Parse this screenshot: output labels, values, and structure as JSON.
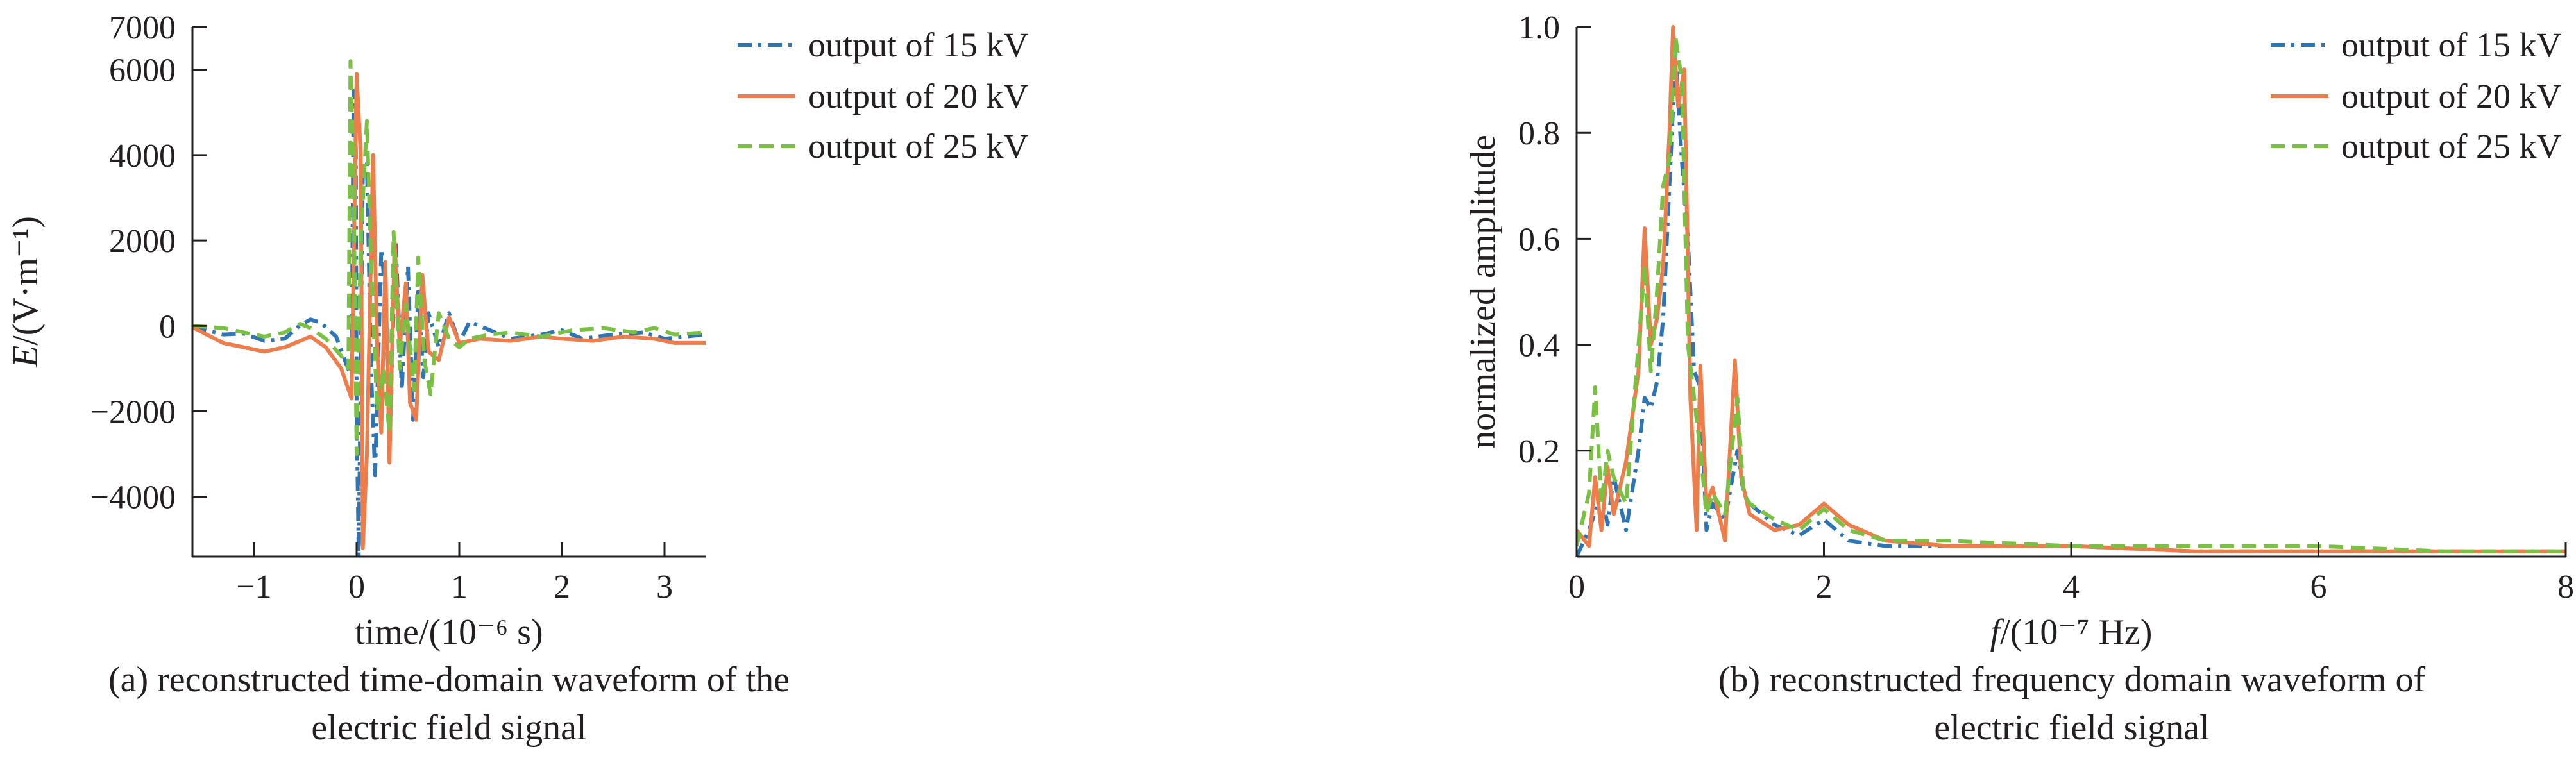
{
  "chart_data": [
    {
      "type": "line",
      "caption": [
        "(a) reconstructed time-domain waveform of the",
        "electric field signal"
      ],
      "xlabel": "time/(10⁻⁶ s)",
      "ylabel": "E/(V·m⁻¹)",
      "xlim": [
        -1.6,
        3.4
      ],
      "ylim": [
        -5400,
        7000
      ],
      "xticks": [
        "−1",
        "0",
        "1",
        "2",
        "3"
      ],
      "xtick_values": [
        -1,
        0,
        1,
        2,
        3
      ],
      "yticks": [
        "7000",
        "6000",
        "4000",
        "2000",
        "0",
        "−2000",
        "−4000"
      ],
      "ytick_values": [
        7000,
        6000,
        4000,
        2000,
        0,
        -2000,
        -4000
      ],
      "legend_position": "top-right",
      "series": [
        {
          "name": "output of 15 kV",
          "color": "#2e75b6",
          "dash": "dashdot",
          "points": [
            [
              -1.6,
              -20
            ],
            [
              -1.3,
              -200
            ],
            [
              -1.1,
              -180
            ],
            [
              -0.9,
              -350
            ],
            [
              -0.7,
              -300
            ],
            [
              -0.55,
              20
            ],
            [
              -0.45,
              150
            ],
            [
              -0.35,
              80
            ],
            [
              -0.2,
              -250
            ],
            [
              -0.1,
              -900
            ],
            [
              -0.05,
              -1200
            ],
            [
              -0.03,
              5500
            ],
            [
              -0.01,
              5200
            ],
            [
              0.0,
              -2000
            ],
            [
              0.02,
              -5400
            ],
            [
              0.06,
              3500
            ],
            [
              0.1,
              3800
            ],
            [
              0.14,
              -1000
            ],
            [
              0.18,
              -3500
            ],
            [
              0.24,
              1800
            ],
            [
              0.28,
              800
            ],
            [
              0.32,
              -2800
            ],
            [
              0.38,
              2000
            ],
            [
              0.44,
              -1500
            ],
            [
              0.5,
              1400
            ],
            [
              0.55,
              -2200
            ],
            [
              0.6,
              800
            ],
            [
              0.65,
              -1200
            ],
            [
              0.7,
              300
            ],
            [
              0.8,
              -500
            ],
            [
              0.9,
              300
            ],
            [
              1.0,
              -400
            ],
            [
              1.1,
              100
            ],
            [
              1.3,
              -100
            ],
            [
              1.5,
              -300
            ],
            [
              1.8,
              -200
            ],
            [
              2.0,
              -100
            ],
            [
              2.2,
              -300
            ],
            [
              2.5,
              -200
            ],
            [
              2.8,
              -150
            ],
            [
              3.0,
              -300
            ],
            [
              3.2,
              -250
            ],
            [
              3.4,
              -200
            ]
          ]
        },
        {
          "name": "output of 20 kV",
          "color": "#ed7d4b",
          "dash": "solid",
          "points": [
            [
              -1.6,
              -30
            ],
            [
              -1.3,
              -400
            ],
            [
              -1.1,
              -500
            ],
            [
              -0.9,
              -600
            ],
            [
              -0.7,
              -500
            ],
            [
              -0.55,
              -350
            ],
            [
              -0.45,
              -250
            ],
            [
              -0.3,
              -500
            ],
            [
              -0.15,
              -1000
            ],
            [
              -0.05,
              -1700
            ],
            [
              0.0,
              5900
            ],
            [
              0.04,
              4000
            ],
            [
              0.06,
              -5200
            ],
            [
              0.1,
              -3000
            ],
            [
              0.16,
              4000
            ],
            [
              0.2,
              -500
            ],
            [
              0.24,
              -2500
            ],
            [
              0.28,
              1500
            ],
            [
              0.32,
              -3200
            ],
            [
              0.37,
              2000
            ],
            [
              0.42,
              -500
            ],
            [
              0.48,
              1000
            ],
            [
              0.52,
              -1800
            ],
            [
              0.58,
              -2200
            ],
            [
              0.64,
              1200
            ],
            [
              0.7,
              -600
            ],
            [
              0.8,
              -800
            ],
            [
              0.9,
              200
            ],
            [
              1.0,
              -400
            ],
            [
              1.2,
              -300
            ],
            [
              1.5,
              -350
            ],
            [
              1.8,
              -250
            ],
            [
              2.0,
              -300
            ],
            [
              2.3,
              -350
            ],
            [
              2.6,
              -250
            ],
            [
              2.9,
              -300
            ],
            [
              3.1,
              -400
            ],
            [
              3.4,
              -400
            ]
          ]
        },
        {
          "name": "output of 25 kV",
          "color": "#7ac143",
          "dash": "dashed",
          "points": [
            [
              -1.6,
              0
            ],
            [
              -1.3,
              -50
            ],
            [
              -1.1,
              -150
            ],
            [
              -0.9,
              -250
            ],
            [
              -0.7,
              -150
            ],
            [
              -0.55,
              50
            ],
            [
              -0.45,
              -50
            ],
            [
              -0.3,
              -300
            ],
            [
              -0.15,
              -700
            ],
            [
              -0.08,
              -1000
            ],
            [
              -0.06,
              6200
            ],
            [
              -0.03,
              3500
            ],
            [
              0.0,
              -3000
            ],
            [
              0.04,
              2000
            ],
            [
              0.1,
              4800
            ],
            [
              0.14,
              1500
            ],
            [
              0.2,
              -2000
            ],
            [
              0.26,
              -1000
            ],
            [
              0.32,
              -2500
            ],
            [
              0.36,
              2200
            ],
            [
              0.42,
              -1000
            ],
            [
              0.48,
              500
            ],
            [
              0.56,
              -1500
            ],
            [
              0.6,
              1600
            ],
            [
              0.66,
              -800
            ],
            [
              0.72,
              -1600
            ],
            [
              0.8,
              300
            ],
            [
              0.9,
              -300
            ],
            [
              1.0,
              -500
            ],
            [
              1.1,
              -300
            ],
            [
              1.3,
              -200
            ],
            [
              1.5,
              -150
            ],
            [
              1.8,
              -250
            ],
            [
              2.1,
              -100
            ],
            [
              2.4,
              -50
            ],
            [
              2.7,
              -150
            ],
            [
              2.9,
              -50
            ],
            [
              3.1,
              -200
            ],
            [
              3.4,
              -150
            ]
          ]
        }
      ]
    },
    {
      "type": "line",
      "caption": [
        "(b) reconstructed frequency domain waveform of",
        "electric field signal"
      ],
      "xlabel": "f/(10⁻⁷ Hz)",
      "ylabel": "normalized amplitude",
      "xlim": [
        0,
        8
      ],
      "ylim": [
        0,
        1.0
      ],
      "xticks": [
        "0",
        "2",
        "4",
        "6",
        "8"
      ],
      "xtick_values": [
        0,
        2,
        4,
        6,
        8
      ],
      "yticks": [
        "1.0",
        "0.8",
        "0.6",
        "0.4",
        "0.2"
      ],
      "ytick_values": [
        1.0,
        0.8,
        0.6,
        0.4,
        0.2
      ],
      "legend_position": "top-right",
      "series": [
        {
          "name": "output of 15 kV",
          "color": "#2e75b6",
          "dash": "dashdot",
          "points": [
            [
              0,
              0
            ],
            [
              0.1,
              0.05
            ],
            [
              0.2,
              0.12
            ],
            [
              0.25,
              0.06
            ],
            [
              0.3,
              0.15
            ],
            [
              0.4,
              0.05
            ],
            [
              0.5,
              0.2
            ],
            [
              0.55,
              0.3
            ],
            [
              0.6,
              0.28
            ],
            [
              0.65,
              0.33
            ],
            [
              0.7,
              0.45
            ],
            [
              0.75,
              0.7
            ],
            [
              0.8,
              0.95
            ],
            [
              0.85,
              0.75
            ],
            [
              0.9,
              0.6
            ],
            [
              0.95,
              0.35
            ],
            [
              1.0,
              0.32
            ],
            [
              1.05,
              0.05
            ],
            [
              1.1,
              0.1
            ],
            [
              1.2,
              0.07
            ],
            [
              1.3,
              0.2
            ],
            [
              1.35,
              0.12
            ],
            [
              1.4,
              0.1
            ],
            [
              1.6,
              0.06
            ],
            [
              1.8,
              0.04
            ],
            [
              2.0,
              0.07
            ],
            [
              2.2,
              0.03
            ],
            [
              2.5,
              0.02
            ],
            [
              3.0,
              0.02
            ],
            [
              4.0,
              0.02
            ],
            [
              5.0,
              0.01
            ],
            [
              6.0,
              0.01
            ],
            [
              7.0,
              0.01
            ],
            [
              8.0,
              0.01
            ]
          ]
        },
        {
          "name": "output of 20 kV",
          "color": "#ed7d4b",
          "dash": "solid",
          "points": [
            [
              0,
              0.05
            ],
            [
              0.1,
              0.02
            ],
            [
              0.15,
              0.15
            ],
            [
              0.2,
              0.05
            ],
            [
              0.25,
              0.17
            ],
            [
              0.3,
              0.08
            ],
            [
              0.4,
              0.18
            ],
            [
              0.5,
              0.35
            ],
            [
              0.55,
              0.62
            ],
            [
              0.6,
              0.4
            ],
            [
              0.65,
              0.45
            ],
            [
              0.7,
              0.55
            ],
            [
              0.75,
              0.8
            ],
            [
              0.78,
              1.0
            ],
            [
              0.82,
              0.85
            ],
            [
              0.87,
              0.92
            ],
            [
              0.92,
              0.3
            ],
            [
              0.97,
              0.05
            ],
            [
              1.0,
              0.36
            ],
            [
              1.05,
              0.1
            ],
            [
              1.1,
              0.13
            ],
            [
              1.2,
              0.03
            ],
            [
              1.28,
              0.37
            ],
            [
              1.33,
              0.15
            ],
            [
              1.4,
              0.08
            ],
            [
              1.6,
              0.05
            ],
            [
              1.8,
              0.06
            ],
            [
              2.0,
              0.1
            ],
            [
              2.2,
              0.06
            ],
            [
              2.5,
              0.03
            ],
            [
              3.0,
              0.02
            ],
            [
              4.0,
              0.02
            ],
            [
              5.0,
              0.01
            ],
            [
              6.0,
              0.01
            ],
            [
              7.0,
              0.01
            ],
            [
              8.0,
              0.01
            ]
          ]
        },
        {
          "name": "output of 25 kV",
          "color": "#7ac143",
          "dash": "dashed",
          "points": [
            [
              0,
              0.02
            ],
            [
              0.1,
              0.12
            ],
            [
              0.15,
              0.32
            ],
            [
              0.2,
              0.1
            ],
            [
              0.25,
              0.2
            ],
            [
              0.3,
              0.15
            ],
            [
              0.4,
              0.1
            ],
            [
              0.5,
              0.4
            ],
            [
              0.55,
              0.55
            ],
            [
              0.6,
              0.35
            ],
            [
              0.65,
              0.5
            ],
            [
              0.7,
              0.7
            ],
            [
              0.75,
              0.75
            ],
            [
              0.8,
              0.98
            ],
            [
              0.85,
              0.9
            ],
            [
              0.9,
              0.4
            ],
            [
              0.95,
              0.3
            ],
            [
              1.0,
              0.2
            ],
            [
              1.05,
              0.08
            ],
            [
              1.1,
              0.12
            ],
            [
              1.2,
              0.08
            ],
            [
              1.3,
              0.3
            ],
            [
              1.35,
              0.12
            ],
            [
              1.4,
              0.1
            ],
            [
              1.6,
              0.07
            ],
            [
              1.8,
              0.05
            ],
            [
              2.0,
              0.09
            ],
            [
              2.2,
              0.05
            ],
            [
              2.5,
              0.03
            ],
            [
              3.0,
              0.03
            ],
            [
              4.0,
              0.02
            ],
            [
              5.0,
              0.02
            ],
            [
              6.0,
              0.02
            ],
            [
              7.0,
              0.01
            ],
            [
              8.0,
              0.01
            ]
          ]
        }
      ]
    }
  ]
}
